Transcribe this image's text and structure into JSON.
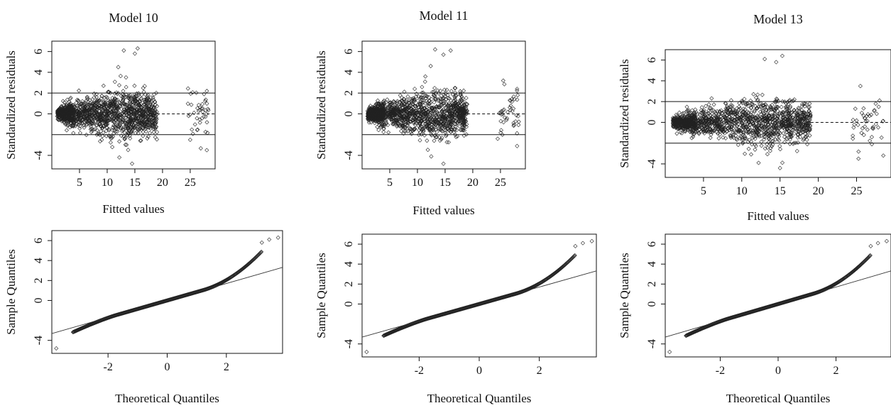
{
  "panels": [
    {
      "type": "scatter",
      "kind": "residuals",
      "title": "Model 10",
      "xlabel": "Fitted values",
      "ylabel": "Standardized residuals",
      "xlim": [
        0,
        29.5
      ],
      "ylim": [
        -5.3,
        7.0
      ],
      "xticks": [
        5,
        10,
        15,
        20,
        25
      ],
      "yticks": [
        -4,
        0,
        2,
        4,
        6
      ],
      "hlines": [
        {
          "y": 2,
          "style": "solid"
        },
        {
          "y": 0,
          "style": "dashed",
          "from_x": 19
        },
        {
          "y": -2,
          "style": "solid"
        }
      ],
      "series": [
        {
          "main_cloud": {
            "x_range": [
              1,
              19
            ],
            "peak_x": 12.5
          },
          "outliers_high": [
            [
              13,
              6.1
            ],
            [
              15.5,
              6.3
            ],
            [
              15,
              5.8
            ],
            [
              12,
              4.5
            ],
            [
              28,
              2.2
            ],
            [
              27.5,
              1.9
            ]
          ],
          "outliers_low": [
            [
              14.5,
              -4.8
            ],
            [
              12.2,
              -4.2
            ],
            [
              28,
              -3.5
            ],
            [
              25,
              -2.5
            ]
          ]
        }
      ]
    },
    {
      "type": "scatter",
      "kind": "residuals",
      "title": "Model 11",
      "xlabel": "Fitted values",
      "ylabel": "Standardized residuals",
      "xlim": [
        0,
        29.5
      ],
      "ylim": [
        -5.3,
        7.0
      ],
      "xticks": [
        5,
        10,
        15,
        20,
        25
      ],
      "yticks": [
        -4,
        0,
        2,
        4,
        6
      ],
      "hlines": [
        {
          "y": 2,
          "style": "solid"
        },
        {
          "y": 0,
          "style": "dashed",
          "from_x": 19
        },
        {
          "y": -2,
          "style": "solid"
        }
      ],
      "series": [
        {
          "main_cloud": {
            "x_range": [
              1,
              19
            ],
            "peak_x": 12.5
          },
          "outliers_high": [
            [
              13.2,
              6.2
            ],
            [
              16,
              6.1
            ],
            [
              14.7,
              5.7
            ],
            [
              12.4,
              4.6
            ],
            [
              25.5,
              3.2
            ],
            [
              28,
              2.4
            ]
          ],
          "outliers_low": [
            [
              14.7,
              -4.8
            ],
            [
              12.5,
              -4.1
            ],
            [
              28,
              -3.1
            ],
            [
              24.5,
              -2.4
            ]
          ]
        }
      ]
    },
    {
      "type": "scatter",
      "kind": "residuals",
      "title": "Model 13",
      "xlabel": "Fitted values",
      "ylabel": "Standardized residuals",
      "xlim": [
        0,
        29.5
      ],
      "ylim": [
        -5.3,
        7.0
      ],
      "xticks": [
        5,
        10,
        15,
        20,
        25
      ],
      "yticks": [
        -4,
        0,
        2,
        4,
        6
      ],
      "hlines": [
        {
          "y": 2,
          "style": "solid"
        },
        {
          "y": 0,
          "style": "dashed",
          "from_x": 19
        },
        {
          "y": -2,
          "style": "solid"
        }
      ],
      "series": [
        {
          "main_cloud": {
            "x_range": [
              1,
              19
            ],
            "peak_x": 12.5
          },
          "outliers_high": [
            [
              13,
              6.1
            ],
            [
              15.3,
              6.4
            ],
            [
              14.5,
              5.8
            ],
            [
              25.5,
              3.5
            ],
            [
              28,
              2.1
            ],
            [
              27.5,
              1.8
            ]
          ],
          "outliers_low": [
            [
              15,
              -4.4
            ],
            [
              12.2,
              -3.9
            ],
            [
              28.5,
              -3.2
            ],
            [
              27,
              -2.1
            ]
          ]
        }
      ]
    },
    {
      "type": "scatter",
      "kind": "qq",
      "title": "",
      "xlabel": "Theoretical Quantiles",
      "ylabel": "Sample Quantiles",
      "xlim": [
        -3.9,
        3.9
      ],
      "ylim": [
        -5.3,
        7.0
      ],
      "xticks": [
        -2,
        0,
        2
      ],
      "yticks": [
        -4,
        0,
        2,
        4,
        6
      ],
      "qqline": {
        "intercept": 0,
        "slope": 0.85
      },
      "series": [
        {
          "curve": "qq",
          "top_points": [
            [
              3.2,
              5.8
            ],
            [
              3.45,
              6.1
            ],
            [
              3.75,
              6.3
            ]
          ],
          "bottom_points": [
            [
              -3.75,
              -4.8
            ]
          ]
        }
      ]
    },
    {
      "type": "scatter",
      "kind": "qq",
      "title": "",
      "xlabel": "Theoretical Quantiles",
      "ylabel": "Sample Quantiles",
      "xlim": [
        -3.9,
        3.9
      ],
      "ylim": [
        -5.3,
        7.0
      ],
      "xticks": [
        -2,
        0,
        2
      ],
      "yticks": [
        -4,
        0,
        2,
        4,
        6
      ],
      "qqline": {
        "intercept": 0,
        "slope": 0.85
      },
      "series": [
        {
          "curve": "qq",
          "top_points": [
            [
              3.2,
              5.8
            ],
            [
              3.45,
              6.1
            ],
            [
              3.75,
              6.3
            ]
          ],
          "bottom_points": [
            [
              -3.75,
              -4.8
            ]
          ]
        }
      ]
    },
    {
      "type": "scatter",
      "kind": "qq",
      "title": "",
      "xlabel": "Theoretical Quantiles",
      "ylabel": "Sample Quantiles",
      "xlim": [
        -3.9,
        3.9
      ],
      "ylim": [
        -5.3,
        7.0
      ],
      "xticks": [
        -2,
        0,
        2
      ],
      "yticks": [
        -4,
        0,
        2,
        4,
        6
      ],
      "qqline": {
        "intercept": 0,
        "slope": 0.85
      },
      "series": [
        {
          "curve": "qq",
          "top_points": [
            [
              3.2,
              5.8
            ],
            [
              3.45,
              6.1
            ],
            [
              3.75,
              6.3
            ]
          ],
          "bottom_points": [
            [
              -3.75,
              -4.8
            ]
          ]
        }
      ]
    }
  ],
  "chart_data": [
    {
      "type": "scatter",
      "title": "Model 10",
      "xlabel": "Fitted values",
      "ylabel": "Standardized residuals",
      "xlim": [
        0,
        29.5
      ],
      "ylim": [
        -5.3,
        7.0
      ],
      "hlines": [
        2,
        0,
        -2
      ]
    },
    {
      "type": "scatter",
      "title": "Model 11",
      "xlabel": "Fitted values",
      "ylabel": "Standardized residuals",
      "xlim": [
        0,
        29.5
      ],
      "ylim": [
        -5.3,
        7.0
      ],
      "hlines": [
        2,
        0,
        -2
      ]
    },
    {
      "type": "scatter",
      "title": "Model 13",
      "xlabel": "Fitted values",
      "ylabel": "Standardized residuals",
      "xlim": [
        0,
        29.5
      ],
      "ylim": [
        -5.3,
        7.0
      ],
      "hlines": [
        2,
        0,
        -2
      ]
    },
    {
      "type": "scatter",
      "title": "",
      "xlabel": "Theoretical Quantiles",
      "ylabel": "Sample Quantiles",
      "xlim": [
        -3.9,
        3.9
      ],
      "ylim": [
        -5.3,
        7.0
      ]
    },
    {
      "type": "scatter",
      "title": "",
      "xlabel": "Theoretical Quantiles",
      "ylabel": "Sample Quantiles",
      "xlim": [
        -3.9,
        3.9
      ],
      "ylim": [
        -5.3,
        7.0
      ]
    },
    {
      "type": "scatter",
      "title": "",
      "xlabel": "Theoretical Quantiles",
      "ylabel": "Sample Quantiles",
      "xlim": [
        -3.9,
        3.9
      ],
      "ylim": [
        -5.3,
        7.0
      ]
    }
  ]
}
